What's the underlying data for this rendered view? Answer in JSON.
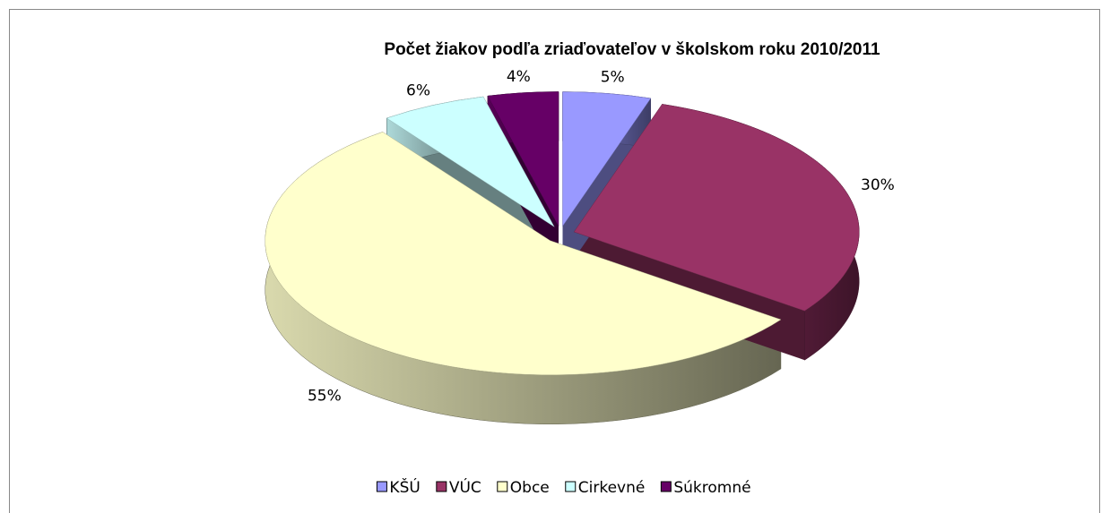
{
  "chart_data": {
    "type": "pie",
    "title": "Počet žiakov podľa zriaďovateľov  v školskom roku 2010/2011",
    "categories": [
      "KŠÚ",
      "VÚC",
      "Obce",
      "Cirkevné",
      "Súkromné"
    ],
    "values": [
      5,
      30,
      55,
      6,
      4
    ],
    "value_labels": [
      "5%",
      "30%",
      "55%",
      "6%",
      "4%"
    ],
    "colors": [
      "#9999ff",
      "#993366",
      "#ffffcc",
      "#ccffff",
      "#660066"
    ],
    "legend": "bottom"
  }
}
